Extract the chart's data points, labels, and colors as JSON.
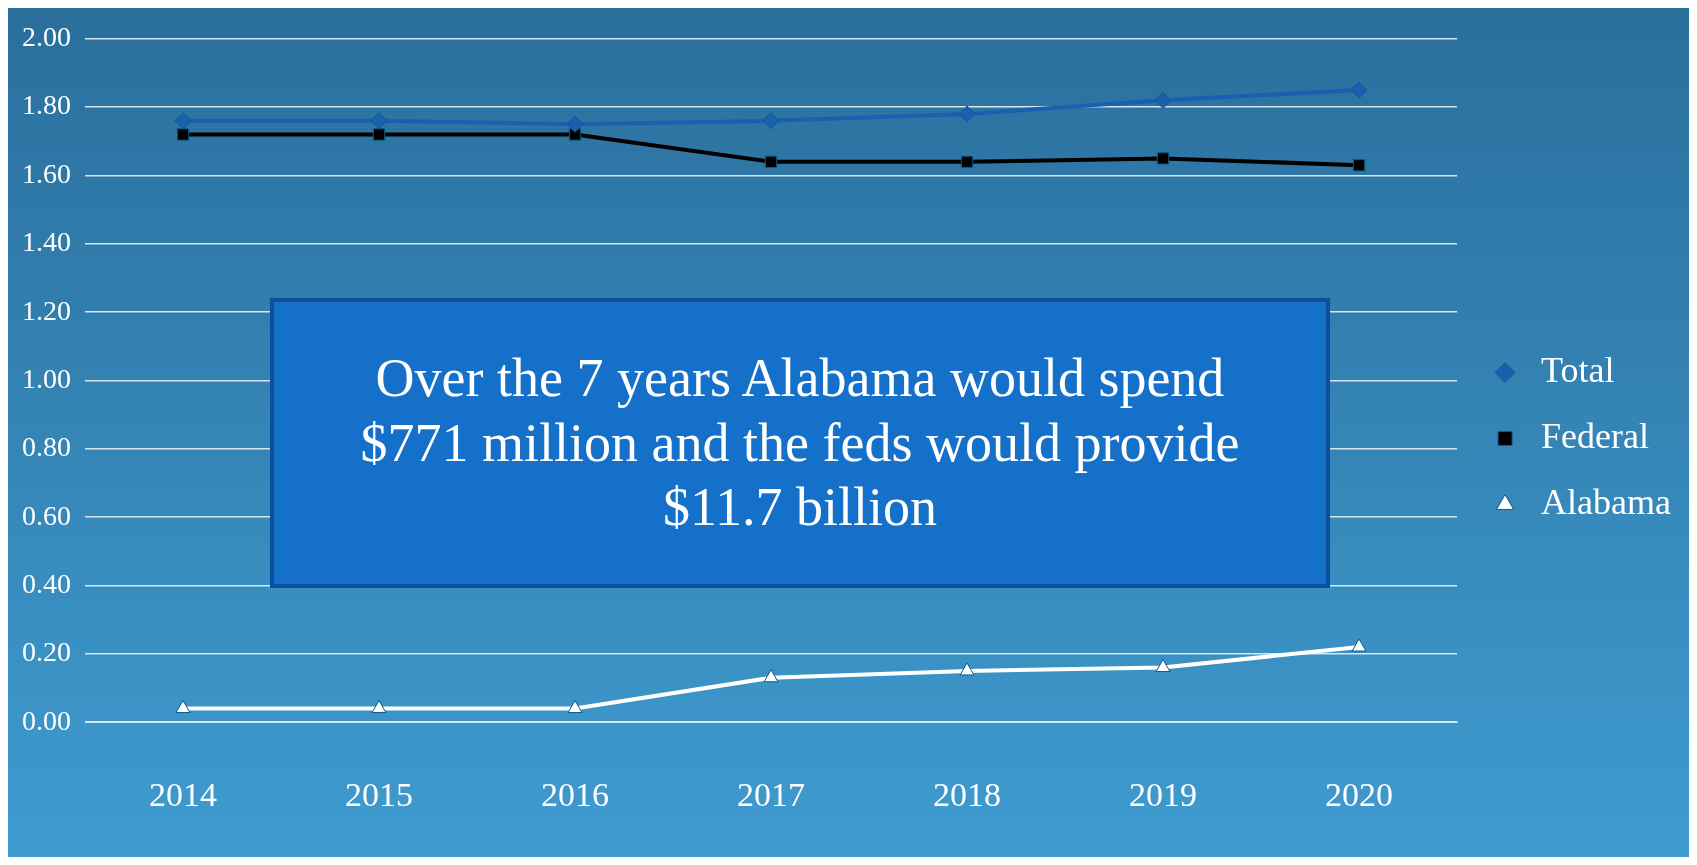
{
  "chart_data": {
    "type": "line",
    "categories": [
      "2014",
      "2015",
      "2016",
      "2017",
      "2018",
      "2019",
      "2020"
    ],
    "series": [
      {
        "name": "Total",
        "color": "#1a5fb0",
        "marker": "diamond",
        "values": [
          1.76,
          1.76,
          1.75,
          1.76,
          1.78,
          1.82,
          1.85
        ]
      },
      {
        "name": "Federal",
        "color": "#000000",
        "marker": "square",
        "values": [
          1.72,
          1.72,
          1.72,
          1.64,
          1.64,
          1.65,
          1.63
        ]
      },
      {
        "name": "Alabama",
        "color": "#ffffff",
        "marker": "triangle",
        "values": [
          0.04,
          0.04,
          0.04,
          0.13,
          0.15,
          0.16,
          0.22
        ]
      }
    ],
    "ylim": [
      0,
      2
    ],
    "yticks": [
      {
        "value": 0,
        "label": "0.00"
      },
      {
        "value": 0.2,
        "label": "0.20"
      },
      {
        "value": 0.4,
        "label": "0.40"
      },
      {
        "value": 0.6,
        "label": "0.60"
      },
      {
        "value": 0.8,
        "label": "0.80"
      },
      {
        "value": 1,
        "label": "1.00"
      },
      {
        "value": 1.2,
        "label": "1.20"
      },
      {
        "value": 1.4,
        "label": "1.40"
      },
      {
        "value": 1.6,
        "label": "1.60"
      },
      {
        "value": 1.8,
        "label": "1.80"
      },
      {
        "value": 2,
        "label": "2.00"
      }
    ],
    "grid": "y",
    "legend": "right",
    "line_style": "solid",
    "annotations": [
      "Over the 7 years Alabama would spend $771 million and the feds would provide $11.7 billion"
    ]
  }
}
